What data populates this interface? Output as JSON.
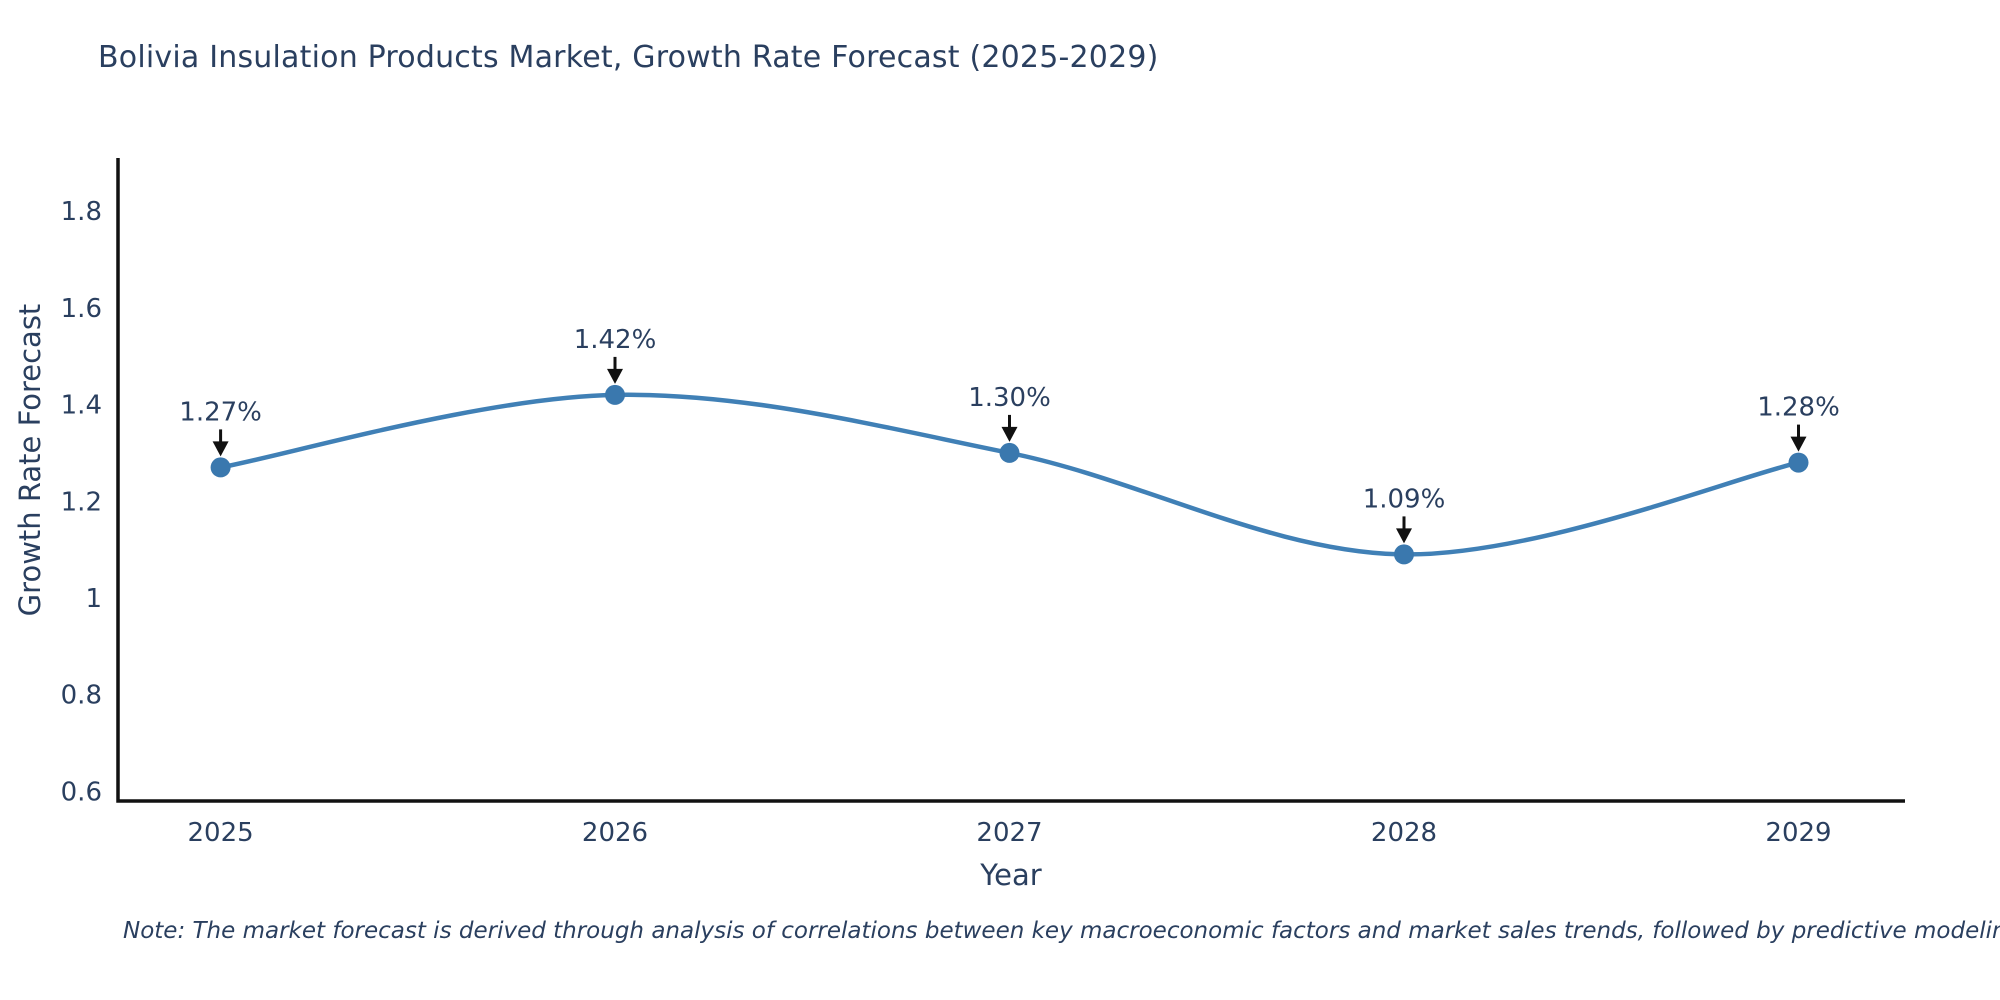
{
  "chart_data": {
    "type": "line",
    "title": "Bolivia Insulation Products Market, Growth Rate Forecast (2025-2029)",
    "xlabel": "Year",
    "ylabel": "Growth Rate Forecast",
    "x": [
      2025,
      2026,
      2027,
      2028,
      2029
    ],
    "y": [
      1.27,
      1.42,
      1.3,
      1.09,
      1.28
    ],
    "point_labels": [
      "1.27%",
      "1.42%",
      "1.30%",
      "1.09%",
      "1.28%"
    ],
    "xtick_labels": [
      "2025",
      "2026",
      "2027",
      "2028",
      "2029"
    ],
    "ytick_values": [
      0.6,
      0.8,
      1.0,
      1.2,
      1.4,
      1.6,
      1.8
    ],
    "ytick_labels": [
      "0.6",
      "0.8",
      "1",
      "1.2",
      "1.4",
      "1.6",
      "1.8"
    ],
    "xlim": [
      2024.74,
      2029.27
    ],
    "ylim": [
      0.58,
      1.91
    ],
    "grid": false,
    "legend_position": "none",
    "line_shape": "spline",
    "colors": {
      "line": "#4080B6",
      "marker": "#3A78AE",
      "axis": "#111111",
      "arrow": "#111111",
      "text": "#2a3f5f",
      "background": "#ffffff"
    }
  },
  "note": {
    "text": "Note: The market forecast is derived through analysis of correlations between key macroeconomic factors and market sales trends, followed by predictive modeling to project future sales"
  }
}
